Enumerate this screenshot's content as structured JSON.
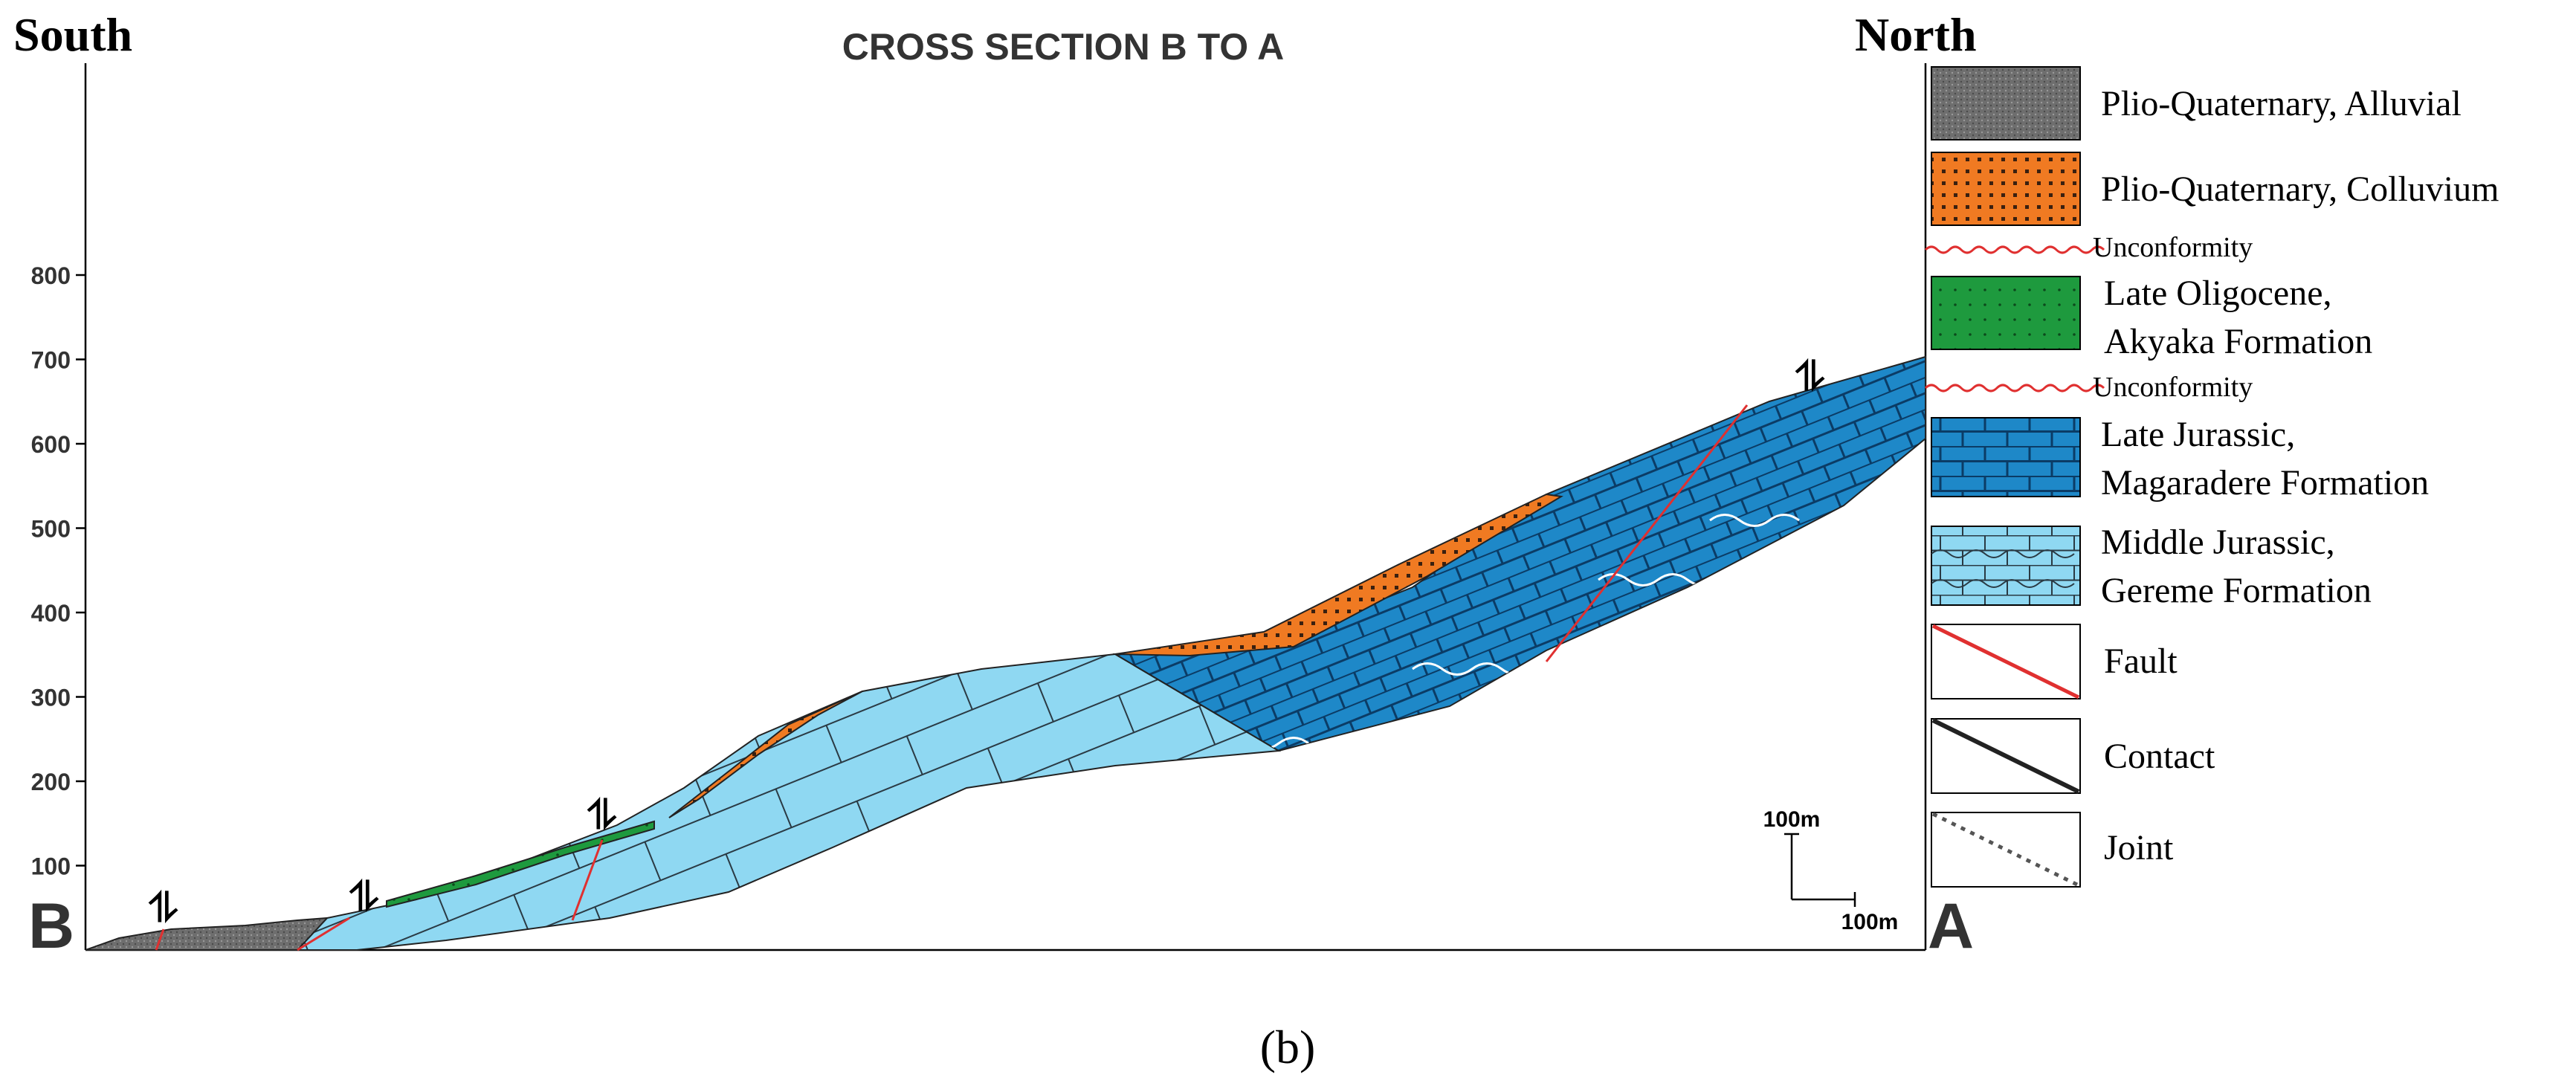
{
  "figure": {
    "title": "CROSS SECTION B TO A",
    "direction_left": "South",
    "direction_right": "North",
    "end_left": "B",
    "end_right": "A",
    "caption": "(b)",
    "y_axis": {
      "ticks": [
        "100",
        "200",
        "300",
        "400",
        "500",
        "600",
        "700",
        "800"
      ],
      "tick_values": [
        100,
        200,
        300,
        400,
        500,
        600,
        700,
        800
      ],
      "range": [
        0,
        800
      ],
      "unit": "m"
    },
    "scale_bar": {
      "vertical": "100m",
      "horizontal": "100m"
    }
  },
  "legend": {
    "alluvial": "Plio-Quaternary, Alluvial",
    "colluvium": "Plio-Quaternary, Colluvium",
    "unconformity_1": "Unconformity",
    "akyaka_1": "Late Oligocene,",
    "akyaka_2": "Akyaka Formation",
    "unconformity_2": "Unconformity",
    "magaradere_1": "Late Jurassic,",
    "magaradere_2": "Magaradere Formation",
    "gereme_1": "Middle Jurassic,",
    "gereme_2": "Gereme Formation",
    "fault": "Fault",
    "contact": "Contact",
    "joint": "Joint"
  },
  "colors": {
    "alluvial": "#6e6e6e",
    "colluvium": "#f07a22",
    "akyaka": "#1e9a3e",
    "magaradere": "#1e88c8",
    "gereme": "#8fd8f2",
    "fault": "#e03030",
    "unconformity": "#e03030",
    "contact": "#222222"
  }
}
